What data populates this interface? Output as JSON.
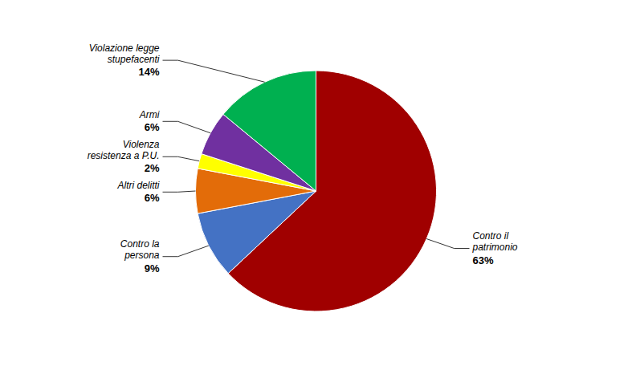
{
  "chart_data": {
    "type": "pie",
    "categories": [
      "Contro il\npatrimonio",
      "Contro la\npersona",
      "Altri delitti",
      "Violenza\nresistenza a P.U.",
      "Armi",
      "Violazione legge\nstupefacenti"
    ],
    "values": [
      63,
      9,
      6,
      2,
      6,
      14
    ],
    "value_labels": [
      "63%",
      "9%",
      "6%",
      "2%",
      "6%",
      "14%"
    ],
    "colors": [
      "#A00000",
      "#4472C4",
      "#E36C09",
      "#FFFF00",
      "#7030A0",
      "#00B050"
    ],
    "data_labels": true
  }
}
